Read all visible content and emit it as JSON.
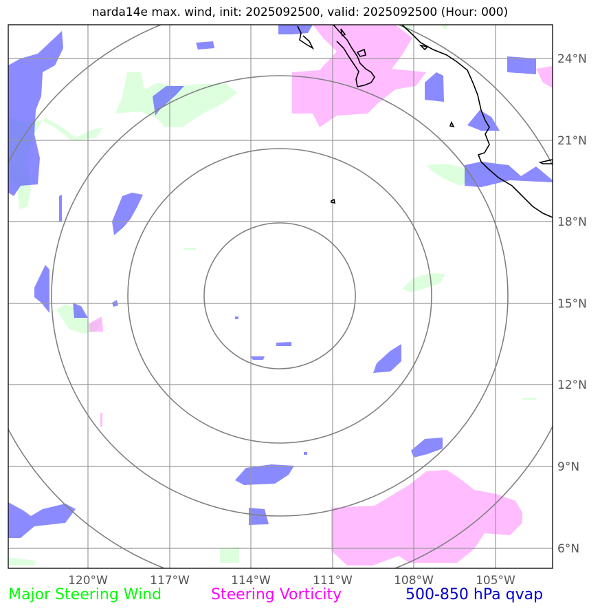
{
  "title": "narda14e max. wind, init: 2025092500, valid: 2025092500 (Hour: 000)",
  "lat_labels": [
    "24°N",
    "21°N",
    "18°N",
    "15°N",
    "12°N",
    "9°N",
    "6°N"
  ],
  "lon_labels": [
    "120°W",
    "117°W",
    "114°W",
    "111°W",
    "108°W",
    "105°W"
  ],
  "legend": {
    "wind": "Major Steering Wind",
    "vorticity": "Steering Vorticity",
    "qvap": "500-850 hPa qvap"
  },
  "colors": {
    "wind": "#00ff00",
    "vorticity": "#ff00ff",
    "qvap": "#0000cc",
    "grid": "#999999",
    "rings": "#808080",
    "coast": "#000000"
  }
}
